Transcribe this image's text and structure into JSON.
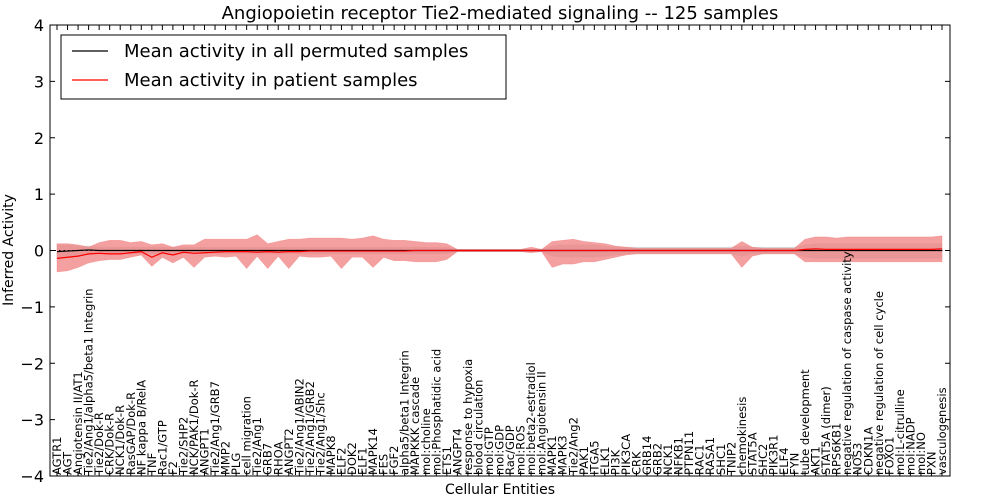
{
  "chart_data": {
    "type": "line",
    "title": "Angiopoietin receptor Tie2-mediated signaling -- 125 samples",
    "xlabel": "Cellular Entities",
    "ylabel": "Inferred Activity",
    "ylim": [
      -4,
      4
    ],
    "yticks": [
      -4,
      -3,
      -2,
      -1,
      0,
      1,
      2,
      3,
      4
    ],
    "grid": false,
    "legend_position": "top-left",
    "colors": {
      "permuted": "#000000",
      "patient": "#ff0000",
      "patient_band": "#f08080",
      "permuted_band": "#c8c8c8"
    },
    "categories": [
      "AGTR1",
      "AGT",
      "Angiotensin II/AT1",
      "Tie2/Ang1/alpha5/beta1 Integrin",
      "Tie2/Dok-R",
      "CRK/Dok-R",
      "NCK1/Dok-R",
      "RasGAP/Dok-R",
      "NF kappa B/RelA",
      "TNF",
      "Rac1/GTP",
      "F2",
      "Tie2/SHP2",
      "NCK/PAK1/Dok-R",
      "ANGPT1",
      "Tie2/Ang1/GRB7",
      "MMP2",
      "PLG",
      "cell migration",
      "Tie2/Ang1",
      "GRB7",
      "RHOA",
      "ANGPT2",
      "Tie2/Ang1/ABIN2",
      "Tie2/Ang1/GRB2",
      "Tie2/Ang1/Shc",
      "MAPK8",
      "ELF2",
      "DOK2",
      "ELF1",
      "MAPK14",
      "FES",
      "FGF2",
      "alpha5/beta1 Integrin",
      "MAPKKK cascade",
      "mol:choline",
      "mol:Phosphatidic acid",
      "ETS1",
      "ANGPT4",
      "response to hypoxia",
      "blood circulation",
      "mol:GTP",
      "mol:GDP",
      "Rac/GDP",
      "mol:ROS",
      "mol:beta2-estradiol",
      "mol:Angiotensin II",
      "MAPK1",
      "MAPK3",
      "Tie2/Ang2",
      "PAK1",
      "ITGA5",
      "ELK1",
      "PI3K",
      "PIK3CA",
      "CRK",
      "GRB14",
      "GRB2",
      "NCK1",
      "NFKB1",
      "PTPN11",
      "RAC1",
      "RASA1",
      "SHC1",
      "TNIP2",
      "chemokinesis",
      "STAT5A",
      "SHC2",
      "PIK3R1",
      "ELF4",
      "FYN",
      "tube development",
      "AKT1",
      "STAT5A (dimer)",
      "RPS6KB1",
      "negative regulation of caspase activity",
      "NOS3",
      "CDKN1A",
      "negative regulation of cell cycle",
      "FOXO1",
      "mol:L-citrulline",
      "mol:NADP",
      "mol:NO",
      "PXN",
      "vasculogenesis"
    ],
    "series": [
      {
        "name": "Mean activity in all permuted samples",
        "values": [
          -0.02,
          -0.01,
          0.0,
          0.01,
          0.0,
          0.0,
          0.0,
          0.0,
          0.0,
          0.0,
          0.0,
          0.0,
          0.0,
          0.0,
          0.0,
          0.0,
          0.0,
          0.0,
          0.0,
          0.0,
          0.0,
          0.0,
          0.0,
          0.0,
          0.0,
          0.0,
          0.0,
          0.0,
          0.0,
          0.0,
          0.0,
          0.0,
          0.0,
          0.0,
          0.0,
          0.0,
          0.0,
          0.0,
          0.0,
          0.0,
          0.0,
          0.0,
          0.0,
          0.0,
          0.0,
          0.0,
          0.0,
          0.0,
          0.0,
          0.0,
          0.0,
          0.0,
          0.0,
          0.0,
          0.0,
          0.0,
          0.0,
          0.0,
          0.0,
          0.0,
          0.0,
          0.0,
          0.0,
          0.0,
          0.0,
          0.0,
          0.0,
          0.0,
          0.0,
          0.0,
          0.0,
          0.0,
          0.0,
          0.0,
          0.0,
          0.0,
          0.0,
          0.0,
          0.0,
          0.0,
          0.0,
          0.0,
          0.0,
          0.0,
          0.0
        ],
        "lower": [
          -0.14,
          -0.12,
          -0.1,
          -0.08,
          -0.06,
          -0.06,
          -0.06,
          -0.06,
          -0.06,
          -0.06,
          -0.06,
          -0.06,
          -0.06,
          -0.06,
          -0.06,
          -0.06,
          -0.06,
          -0.06,
          -0.06,
          -0.06,
          -0.06,
          -0.06,
          -0.06,
          -0.06,
          -0.06,
          -0.06,
          -0.06,
          -0.06,
          -0.06,
          -0.06,
          -0.06,
          -0.06,
          -0.06,
          -0.06,
          -0.06,
          -0.06,
          -0.06,
          -0.06,
          -0.02,
          -0.02,
          -0.02,
          -0.02,
          -0.02,
          -0.02,
          -0.02,
          -0.02,
          -0.02,
          -0.1,
          -0.12,
          -0.12,
          -0.12,
          -0.12,
          -0.1,
          -0.08,
          -0.06,
          -0.06,
          -0.06,
          -0.06,
          -0.06,
          -0.06,
          -0.06,
          -0.06,
          -0.06,
          -0.06,
          -0.06,
          -0.1,
          -0.06,
          -0.06,
          -0.06,
          -0.06,
          -0.06,
          -0.12,
          -0.14,
          -0.14,
          -0.14,
          -0.14,
          -0.14,
          -0.14,
          -0.14,
          -0.14,
          -0.14,
          -0.14,
          -0.14,
          -0.14,
          -0.14
        ],
        "upper": [
          0.1,
          0.1,
          0.08,
          0.08,
          0.06,
          0.06,
          0.06,
          0.06,
          0.06,
          0.06,
          0.06,
          0.06,
          0.06,
          0.06,
          0.06,
          0.06,
          0.06,
          0.06,
          0.06,
          0.06,
          0.06,
          0.06,
          0.06,
          0.06,
          0.06,
          0.06,
          0.06,
          0.06,
          0.06,
          0.06,
          0.06,
          0.06,
          0.06,
          0.06,
          0.06,
          0.06,
          0.06,
          0.06,
          0.02,
          0.02,
          0.02,
          0.02,
          0.02,
          0.02,
          0.02,
          0.02,
          0.02,
          0.08,
          0.1,
          0.1,
          0.1,
          0.1,
          0.08,
          0.06,
          0.06,
          0.06,
          0.06,
          0.06,
          0.06,
          0.06,
          0.06,
          0.06,
          0.06,
          0.06,
          0.06,
          0.08,
          0.06,
          0.06,
          0.06,
          0.06,
          0.06,
          0.1,
          0.12,
          0.12,
          0.12,
          0.12,
          0.12,
          0.12,
          0.12,
          0.12,
          0.12,
          0.12,
          0.12,
          0.12,
          0.12
        ]
      },
      {
        "name": "Mean activity in patient samples",
        "values": [
          -0.14,
          -0.12,
          -0.1,
          -0.06,
          -0.05,
          -0.06,
          -0.06,
          -0.04,
          -0.02,
          -0.12,
          -0.04,
          -0.08,
          -0.03,
          -0.05,
          -0.04,
          -0.03,
          -0.02,
          -0.02,
          -0.02,
          -0.03,
          -0.02,
          -0.03,
          -0.02,
          -0.02,
          -0.01,
          -0.01,
          -0.01,
          -0.01,
          -0.01,
          -0.01,
          -0.01,
          -0.01,
          -0.01,
          -0.01,
          0.0,
          0.0,
          0.0,
          0.0,
          0.0,
          0.0,
          0.0,
          0.0,
          0.0,
          0.0,
          0.0,
          0.0,
          0.0,
          0.0,
          0.0,
          0.0,
          0.0,
          0.0,
          0.0,
          0.0,
          0.0,
          0.0,
          0.0,
          0.0,
          0.0,
          0.0,
          0.0,
          0.0,
          0.0,
          0.0,
          0.0,
          0.0,
          0.0,
          0.0,
          0.0,
          0.0,
          0.0,
          0.02,
          0.03,
          0.02,
          0.02,
          0.02,
          0.02,
          0.02,
          0.02,
          0.02,
          0.02,
          0.02,
          0.02,
          0.02,
          0.03
        ],
        "lower": [
          -0.38,
          -0.36,
          -0.3,
          -0.22,
          -0.18,
          -0.16,
          -0.16,
          -0.12,
          -0.08,
          -0.28,
          -0.12,
          -0.22,
          -0.12,
          -0.3,
          -0.12,
          -0.1,
          -0.12,
          -0.1,
          -0.32,
          -0.1,
          -0.32,
          -0.1,
          -0.32,
          -0.1,
          -0.12,
          -0.12,
          -0.1,
          -0.32,
          -0.12,
          -0.12,
          -0.3,
          -0.12,
          -0.18,
          -0.18,
          -0.2,
          -0.2,
          -0.2,
          -0.16,
          -0.02,
          -0.02,
          -0.02,
          -0.02,
          -0.02,
          -0.02,
          -0.02,
          -0.04,
          -0.02,
          -0.3,
          -0.24,
          -0.24,
          -0.2,
          -0.2,
          -0.16,
          -0.12,
          -0.08,
          -0.06,
          -0.06,
          -0.06,
          -0.06,
          -0.06,
          -0.06,
          -0.06,
          -0.06,
          -0.06,
          -0.06,
          -0.3,
          -0.1,
          -0.06,
          -0.06,
          -0.06,
          -0.06,
          -0.2,
          -0.2,
          -0.2,
          -0.2,
          -0.2,
          -0.2,
          -0.2,
          -0.2,
          -0.2,
          -0.2,
          -0.2,
          -0.2,
          -0.2,
          -0.2
        ],
        "upper": [
          0.12,
          0.12,
          0.1,
          0.06,
          0.14,
          0.18,
          0.18,
          0.14,
          0.16,
          0.1,
          0.12,
          0.06,
          0.1,
          0.1,
          0.2,
          0.2,
          0.2,
          0.2,
          0.2,
          0.28,
          0.12,
          0.16,
          0.2,
          0.2,
          0.22,
          0.22,
          0.22,
          0.22,
          0.2,
          0.22,
          0.26,
          0.2,
          0.18,
          0.18,
          0.16,
          0.14,
          0.14,
          0.12,
          0.02,
          0.02,
          0.02,
          0.02,
          0.02,
          0.02,
          0.02,
          0.06,
          0.02,
          0.16,
          0.18,
          0.2,
          0.16,
          0.14,
          0.12,
          0.08,
          0.06,
          0.04,
          0.04,
          0.04,
          0.04,
          0.04,
          0.04,
          0.04,
          0.04,
          0.04,
          0.04,
          0.16,
          0.06,
          0.04,
          0.04,
          0.04,
          0.04,
          0.2,
          0.24,
          0.24,
          0.22,
          0.24,
          0.24,
          0.24,
          0.24,
          0.24,
          0.24,
          0.24,
          0.24,
          0.24,
          0.26
        ]
      }
    ]
  }
}
